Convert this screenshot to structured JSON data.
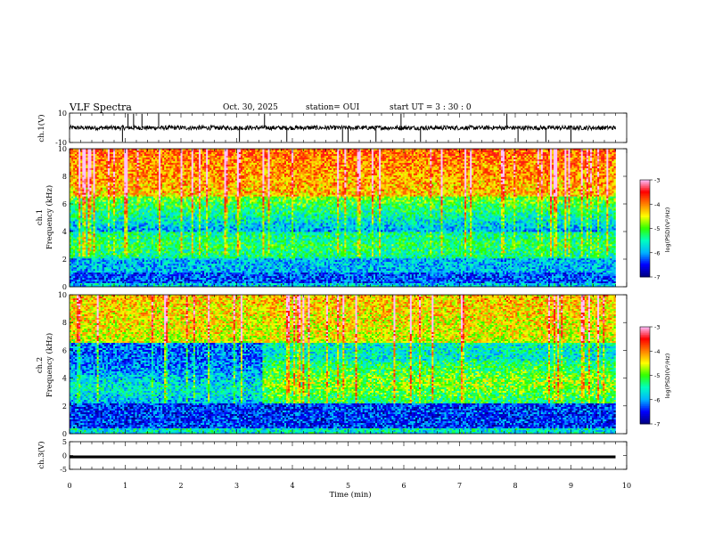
{
  "header": {
    "title": "VLF Spectra",
    "date": "Oct. 30, 2025",
    "station": "station= OUI",
    "start_ut": "start  UT =  3 : 30 : 0"
  },
  "colors": {
    "ramp": [
      "#000080",
      "#0000ff",
      "#00b4ff",
      "#00ffc0",
      "#30ff00",
      "#ffff00",
      "#ff8000",
      "#ff0000",
      "#ffc0ff"
    ]
  },
  "chart_data": [
    {
      "id": "ch1-waveform",
      "type": "line",
      "ylabel": "ch.1(V)",
      "yticks": [
        "10",
        "-10"
      ],
      "ylim": [
        -10,
        10
      ],
      "xlim": [
        0,
        10
      ],
      "baseline": 0,
      "noise_amplitude": 1.5,
      "spikes": [
        0.95,
        1.05,
        1.15,
        1.3,
        1.6,
        3.05,
        3.5,
        3.9,
        4.9,
        5.0,
        5.5,
        5.95,
        6.3,
        7.85,
        8.05,
        8.55,
        9.0
      ]
    },
    {
      "id": "ch1-spectrogram",
      "type": "heatmap",
      "ylabel": "ch.1",
      "ylabel2": "Frequency  (kHz)",
      "ylim": [
        0,
        10
      ],
      "yticks": [
        "0",
        "2",
        "4",
        "6",
        "8",
        "10"
      ],
      "xlim": [
        0,
        9.8
      ],
      "colorbar": {
        "label": "log(PSD)(V²/Hz)",
        "range": [
          -7,
          -3
        ],
        "ticks": [
          "-3",
          "-4",
          "-5",
          "-6",
          "-7"
        ]
      },
      "features": {
        "high_band_khz": [
          6.5,
          10
        ],
        "high_band_level": -4.3,
        "mid_band_khz": [
          4,
          6
        ],
        "mid_band_level": -6.0,
        "band_2_4_khz": [
          2,
          3.8
        ],
        "band_2_4_level": -5.2,
        "low_band_khz": [
          0.3,
          2
        ],
        "low_band_level": -6.3
      }
    },
    {
      "id": "ch2-spectrogram",
      "type": "heatmap",
      "ylabel": "ch.2",
      "ylabel2": "Frequency  (kHz)",
      "ylim": [
        0,
        10
      ],
      "yticks": [
        "0",
        "2",
        "4",
        "6",
        "8",
        "10"
      ],
      "xlim": [
        0,
        9.8
      ],
      "colorbar": {
        "label": "log(PSD)(V²/Hz)",
        "range": [
          -7,
          -3
        ],
        "ticks": [
          "-3",
          "-4",
          "-5",
          "-6",
          "-7"
        ]
      },
      "features": {
        "high_band_khz": [
          6.5,
          10
        ],
        "high_band_level": -4.6,
        "band_onset_min": 3.45,
        "enhanced_band_khz": [
          2.2,
          5.2
        ],
        "enhanced_band_level": -4.8,
        "low_band_khz": [
          0,
          2
        ],
        "low_band_level": -6.4
      }
    },
    {
      "id": "ch3-waveform",
      "type": "line",
      "ylabel": "ch.3(V)",
      "yticks": [
        "5",
        "0",
        "-5"
      ],
      "ylim": [
        -5,
        5
      ],
      "xlim": [
        0,
        10
      ],
      "baseline": -0.5
    }
  ],
  "xaxis": {
    "label": "Time  (min)",
    "ticks": [
      "0",
      "1",
      "2",
      "3",
      "4",
      "5",
      "6",
      "7",
      "8",
      "9",
      "10"
    ]
  }
}
